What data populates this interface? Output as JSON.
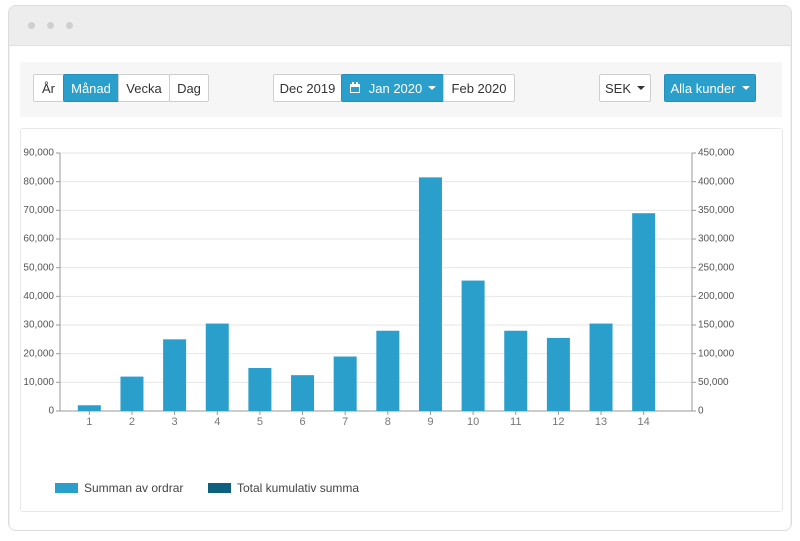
{
  "toolbar": {
    "period_buttons": [
      "År",
      "Månad",
      "Vecka",
      "Dag"
    ],
    "date_buttons": [
      "Dec 2019",
      "Jan 2020",
      "Feb 2020"
    ],
    "currency": "SEK",
    "customer_filter": "Alla kunder"
  },
  "chart_data": {
    "type": "bar",
    "categories": [
      "1",
      "2",
      "3",
      "4",
      "5",
      "6",
      "7",
      "8",
      "9",
      "10",
      "11",
      "12",
      "13",
      "14"
    ],
    "series": [
      {
        "name": "Summan av ordrar",
        "color": "#2a9fcb",
        "values": [
          2000,
          12000,
          25000,
          30500,
          15000,
          12500,
          19000,
          28000,
          81500,
          45500,
          28000,
          25500,
          30500,
          69000
        ]
      },
      {
        "name": "Total kumulativ summa",
        "color": "#0f5f7f",
        "axis": "y2",
        "values": [
          null,
          null,
          null,
          null,
          null,
          null,
          null,
          null,
          null,
          null,
          null,
          null,
          null,
          null
        ]
      }
    ],
    "ylim": [
      0,
      90000
    ],
    "yticks": [
      0,
      {
        "value": 10000,
        "label": "10,000"
      },
      {
        "value": 20000,
        "label": "20,000"
      },
      {
        "value": 30000,
        "label": "30,000"
      },
      {
        "value": 40000,
        "label": "40,000"
      },
      {
        "value": 50000,
        "label": "50,000"
      },
      {
        "value": 60000,
        "label": "60,000"
      },
      {
        "value": 70000,
        "label": "70,000"
      },
      {
        "value": 80000,
        "label": "80,000"
      },
      {
        "value": 90000,
        "label": "90,000"
      }
    ],
    "y2lim": [
      0,
      450000
    ],
    "y2ticks": [
      0,
      {
        "value": 50000,
        "label": "50,000"
      },
      {
        "value": 100000,
        "label": "100,000"
      },
      {
        "value": 150000,
        "label": "150,000"
      },
      {
        "value": 200000,
        "label": "200,000"
      },
      {
        "value": 250000,
        "label": "250,000"
      },
      {
        "value": 300000,
        "label": "300,000"
      },
      {
        "value": 350000,
        "label": "350,000"
      },
      {
        "value": 400000,
        "label": "400,000"
      },
      {
        "value": 450000,
        "label": "450,000"
      }
    ],
    "grid": true
  }
}
